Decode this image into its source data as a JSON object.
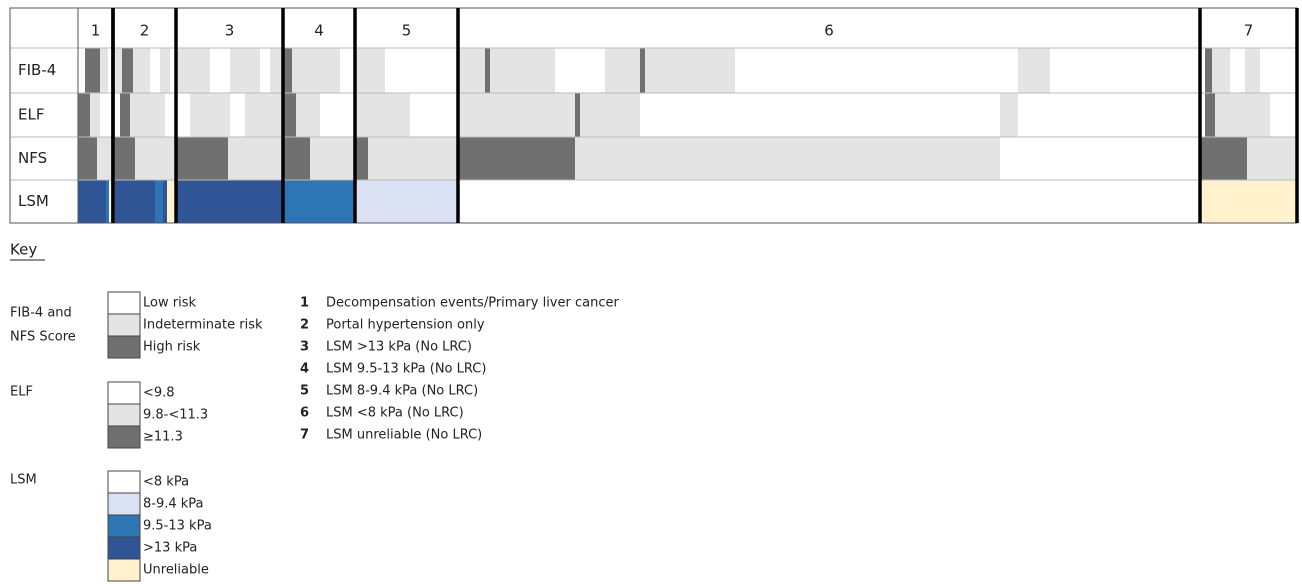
{
  "header": {
    "groups": [
      "1",
      "2",
      "3",
      "4",
      "5",
      "6",
      "7"
    ]
  },
  "rows": [
    "FIB-4",
    "ELF",
    "NFS",
    "LSM"
  ],
  "key": {
    "title": "Key",
    "sections": [
      {
        "label_lines": [
          "FIB-4 and",
          "NFS Score"
        ],
        "items": [
          "Low risk",
          "Indeterminate risk",
          "High risk"
        ]
      },
      {
        "label_lines": [
          "ELF"
        ],
        "items": [
          "<9.8",
          "9.8-<11.3",
          "≥11.3"
        ]
      },
      {
        "label_lines": [
          "LSM"
        ],
        "items": [
          "<8 kPa",
          "8-9.4 kPa",
          "9.5-13 kPa",
          ">13 kPa",
          "Unreliable"
        ]
      }
    ],
    "groups": [
      {
        "number": "1",
        "text": "Decompensation events/Primary liver cancer"
      },
      {
        "number": "2",
        "text": "Portal hypertension only"
      },
      {
        "number": "3",
        "text": "LSM >13 kPa (No LRC)"
      },
      {
        "number": "4",
        "text": "LSM 9.5-13 kPa (No LRC)"
      },
      {
        "number": "5",
        "text": "LSM 8-9.4 kPa  (No LRC)"
      },
      {
        "number": "6",
        "text": "LSM <8 kPa (No LRC)"
      },
      {
        "number": "7",
        "text": "LSM unreliable (No LRC)"
      }
    ]
  }
}
